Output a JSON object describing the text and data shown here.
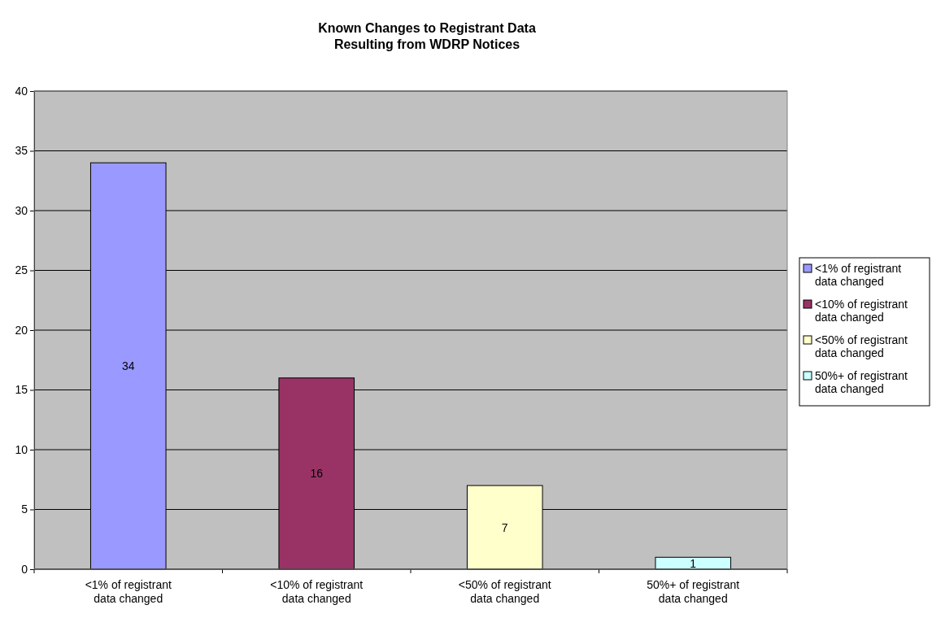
{
  "chart_data": {
    "type": "bar",
    "title": "Known Changes to Registrant Data\nResulting from WDRP Notices",
    "categories": [
      "<1% of registrant data changed",
      "<10% of registrant data changed",
      "<50% of registrant data changed",
      "50%+ of registrant data changed"
    ],
    "stacked": true,
    "series": [
      {
        "name": "<1% of registrant data changed",
        "color": "#9999ff",
        "values": [
          34,
          null,
          null,
          null
        ]
      },
      {
        "name": "<10% of registrant data changed",
        "color": "#993366",
        "values": [
          null,
          16,
          null,
          null
        ]
      },
      {
        "name": "<50% of registrant data changed",
        "color": "#ffffcc",
        "values": [
          null,
          null,
          7,
          null
        ]
      },
      {
        "name": "50%+ of registrant data changed",
        "color": "#ccffff",
        "values": [
          null,
          null,
          null,
          1
        ]
      }
    ],
    "ylim": [
      0,
      40
    ],
    "yticks": [
      0,
      5,
      10,
      15,
      20,
      25,
      30,
      35,
      40
    ],
    "grid": "y",
    "legend": "right",
    "data_labels": true
  }
}
